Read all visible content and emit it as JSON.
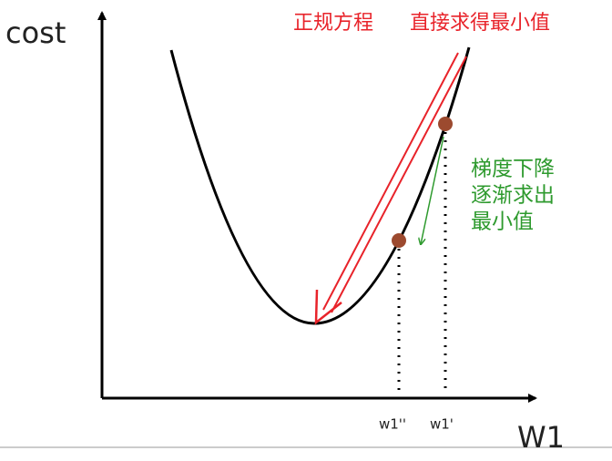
{
  "axes": {
    "y_label": "cost",
    "x_label": "W1"
  },
  "ticks": [
    "w1''",
    "w1'"
  ],
  "normal_equation": {
    "method": "正规方程",
    "result": "直接求得最小值"
  },
  "gradient_descent": {
    "lines": [
      "梯度下降",
      "逐渐求出",
      "最小值"
    ]
  }
}
